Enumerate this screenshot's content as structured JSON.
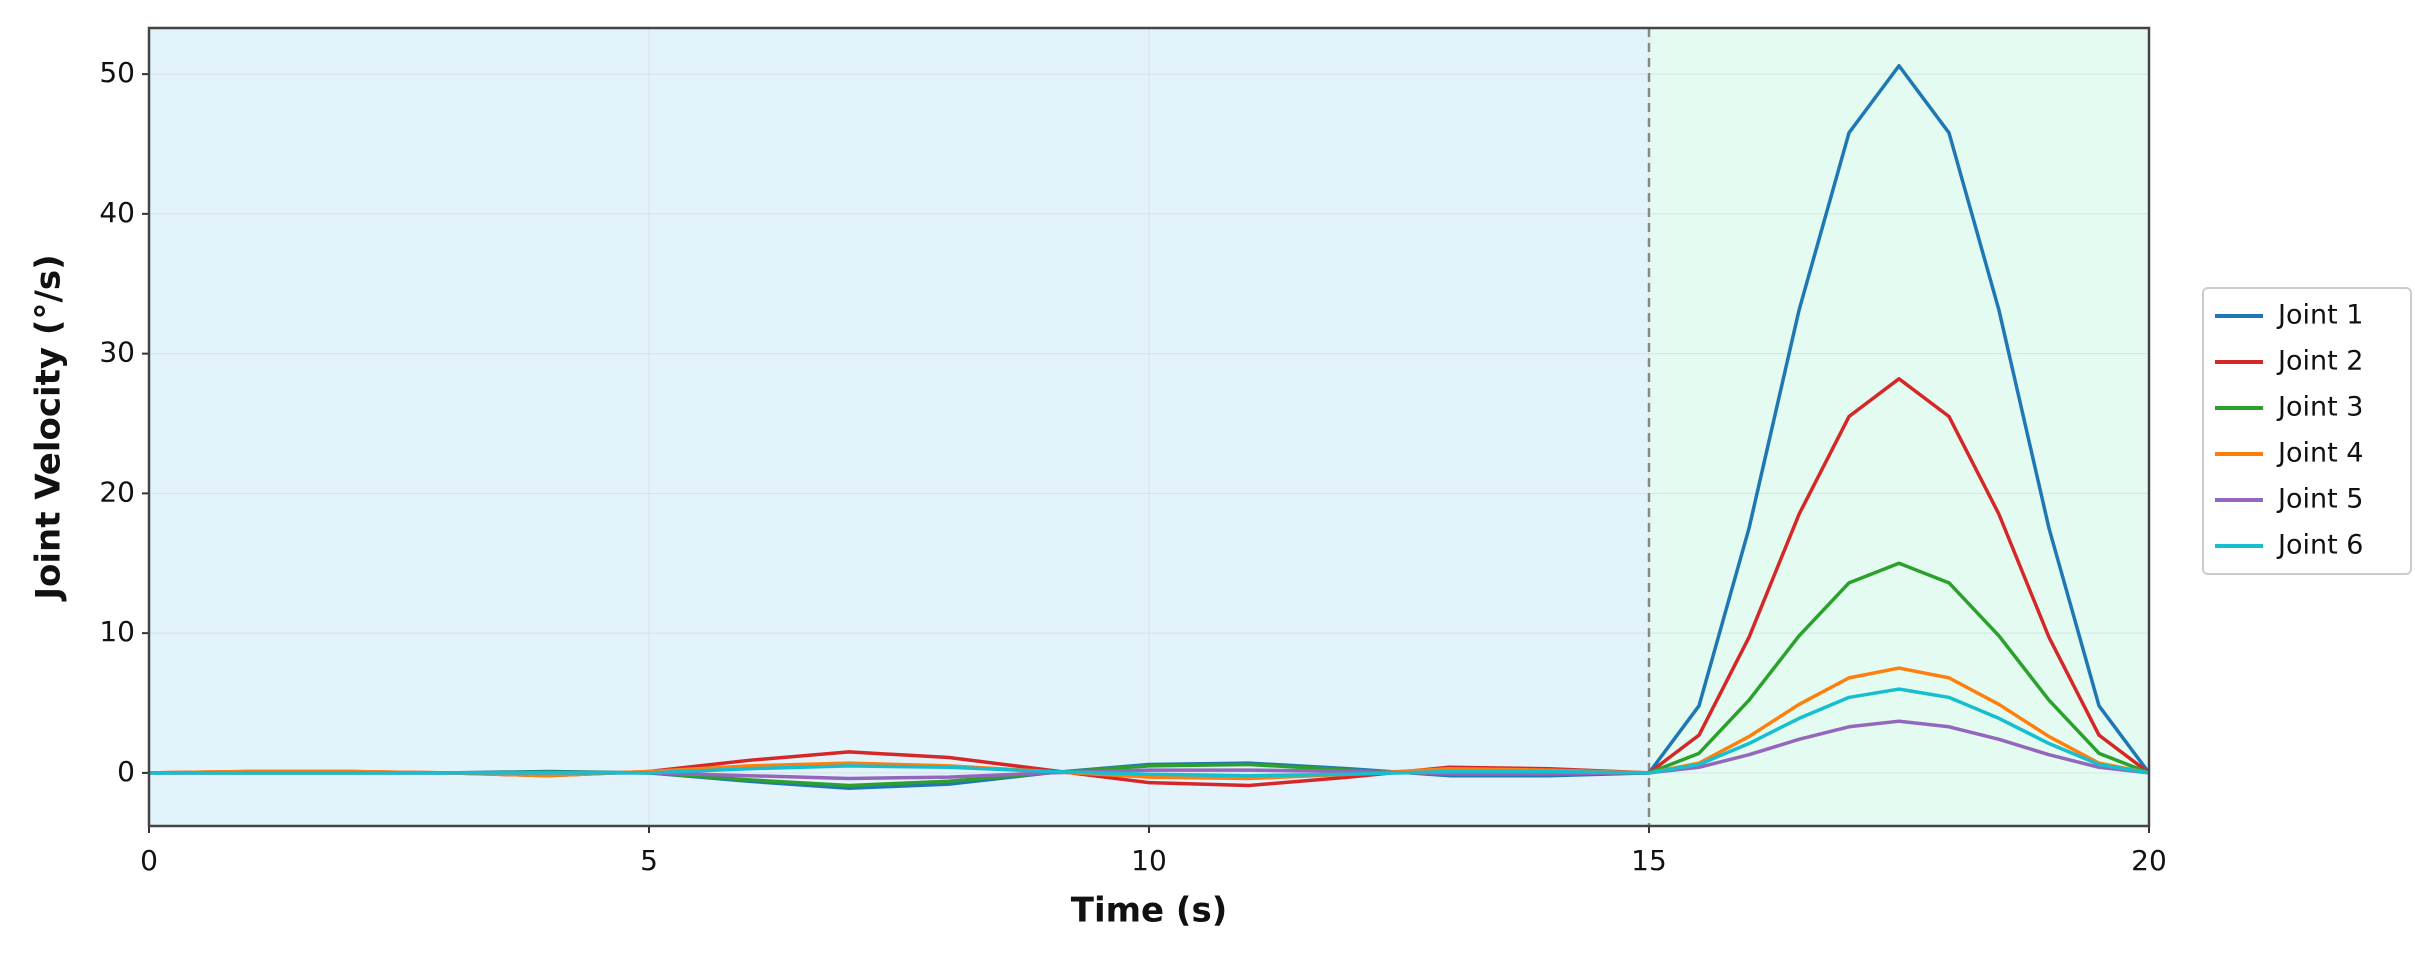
{
  "chart_data": {
    "type": "line",
    "xlabel": "Time (s)",
    "ylabel": "Joint Velocity (°/s)",
    "x": [
      0,
      1,
      2,
      3,
      4,
      5,
      6,
      7,
      8,
      9,
      10,
      11,
      12,
      13,
      14,
      15,
      15.5,
      16,
      16.5,
      17,
      17.5,
      18,
      18.5,
      19,
      19.5,
      20
    ],
    "series": [
      {
        "name": "Joint 1",
        "color": "#1f77b4",
        "values": [
          0,
          0,
          0,
          0,
          0.1,
          0,
          -0.6,
          -1.1,
          -0.8,
          0,
          0.6,
          0.7,
          0.3,
          -0.2,
          -0.2,
          0,
          4.8,
          17.5,
          33.1,
          45.8,
          50.6,
          45.8,
          33.1,
          17.5,
          4.8,
          0
        ]
      },
      {
        "name": "Joint 2",
        "color": "#d62728",
        "values": [
          0,
          0.1,
          0.1,
          0,
          -0.2,
          0.1,
          0.9,
          1.5,
          1.1,
          0.2,
          -0.7,
          -0.9,
          -0.3,
          0.4,
          0.3,
          0,
          2.7,
          9.7,
          18.5,
          25.5,
          28.2,
          25.5,
          18.5,
          9.7,
          2.7,
          0
        ]
      },
      {
        "name": "Joint 3",
        "color": "#2ca02c",
        "values": [
          0,
          0,
          0,
          0,
          0.05,
          0,
          -0.5,
          -0.9,
          -0.6,
          0,
          0.5,
          0.6,
          0.2,
          -0.1,
          -0.1,
          0,
          1.4,
          5.2,
          9.8,
          13.6,
          15,
          13.6,
          9.8,
          5.2,
          1.4,
          0
        ]
      },
      {
        "name": "Joint 4",
        "color": "#ff7f0e",
        "values": [
          0,
          0.1,
          0.1,
          0,
          -0.2,
          0.1,
          0.5,
          0.7,
          0.5,
          0.1,
          -0.3,
          -0.4,
          -0.1,
          0.3,
          0.2,
          0,
          0.7,
          2.6,
          4.9,
          6.8,
          7.5,
          6.8,
          4.9,
          2.6,
          0.7,
          0
        ]
      },
      {
        "name": "Joint 5",
        "color": "#9467bd",
        "values": [
          0,
          0,
          0,
          0,
          0,
          0,
          -0.2,
          -0.4,
          -0.3,
          0,
          0.2,
          0.2,
          0.1,
          -0.05,
          -0.05,
          0,
          0.4,
          1.3,
          2.4,
          3.3,
          3.7,
          3.3,
          2.4,
          1.3,
          0.4,
          0
        ]
      },
      {
        "name": "Joint 6",
        "color": "#17becf",
        "values": [
          0,
          0,
          0,
          0,
          0,
          0,
          0.3,
          0.5,
          0.4,
          0.1,
          -0.1,
          -0.2,
          -0.1,
          0.1,
          0.1,
          0,
          0.6,
          2.1,
          3.9,
          5.4,
          6,
          5.4,
          3.9,
          2.1,
          0.6,
          0
        ]
      }
    ],
    "spans": [
      {
        "x0": 0,
        "x1": 15,
        "color": "#e3f3fc"
      },
      {
        "x0": 15,
        "x1": 20,
        "color": "#e3fbf0"
      }
    ],
    "vline": 15,
    "xlim": [
      0,
      20
    ],
    "xticks": [
      0,
      5,
      10,
      15,
      20
    ],
    "ylim": [
      -3.8,
      53.3
    ],
    "yticks": [
      0,
      10,
      20,
      30,
      40,
      50
    ],
    "grid": true,
    "legend": "outside right"
  }
}
